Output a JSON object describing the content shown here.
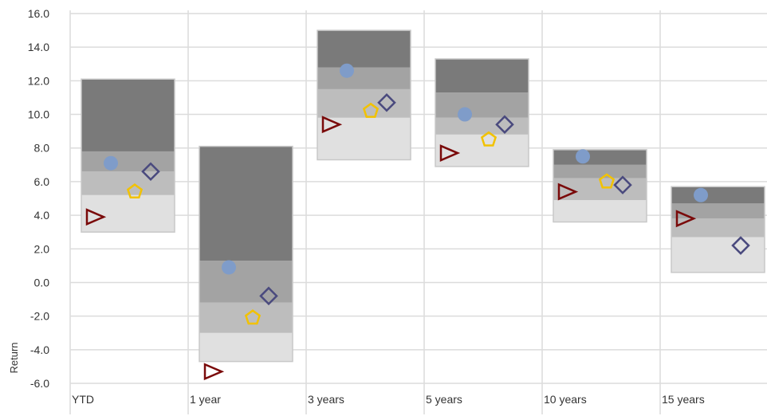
{
  "chart_data": {
    "type": "floating-bar-with-markers",
    "title": "",
    "xlabel": "",
    "ylabel": "Return",
    "ylim": [
      -6,
      16
    ],
    "yticks": [
      -6,
      -4,
      -2,
      0,
      2,
      4,
      6,
      8,
      10,
      12,
      14,
      16
    ],
    "ytick_labels": [
      "-6.0",
      "-4.0",
      "-2.0",
      "0.0",
      "2.0",
      "4.0",
      "6.0",
      "8.0",
      "10.0",
      "12.0",
      "14.0",
      "16.0"
    ],
    "grid": true,
    "categories": [
      "YTD",
      "1 year",
      "3 years",
      "5 years",
      "10 years",
      "15 years"
    ],
    "bands": [
      {
        "color": "#e0e0e0",
        "values": [
          [
            3.0,
            5.2
          ],
          [
            -4.7,
            -3.0
          ],
          [
            7.3,
            9.8
          ],
          [
            6.9,
            8.8
          ],
          [
            3.6,
            4.9
          ],
          [
            0.6,
            2.7
          ]
        ]
      },
      {
        "color": "#bdbdbd",
        "values": [
          [
            5.2,
            6.6
          ],
          [
            -3.0,
            -1.2
          ],
          [
            9.8,
            11.5
          ],
          [
            8.8,
            9.8
          ],
          [
            4.9,
            6.2
          ],
          [
            2.7,
            3.8
          ]
        ]
      },
      {
        "color": "#a3a3a3",
        "values": [
          [
            6.6,
            7.8
          ],
          [
            -1.2,
            1.3
          ],
          [
            11.5,
            12.8
          ],
          [
            9.8,
            11.3
          ],
          [
            6.2,
            7.0
          ],
          [
            3.8,
            4.7
          ]
        ]
      },
      {
        "color": "#7a7a7a",
        "values": [
          [
            7.8,
            12.1
          ],
          [
            1.3,
            8.1
          ],
          [
            12.8,
            15.0
          ],
          [
            11.3,
            13.3
          ],
          [
            7.0,
            7.9
          ],
          [
            4.7,
            5.7
          ]
        ]
      }
    ],
    "series": [
      {
        "marker": "circle",
        "color": "#7f9cc9",
        "values": [
          7.1,
          0.9,
          12.6,
          10.0,
          7.5,
          5.2
        ]
      },
      {
        "marker": "diamond",
        "color": "#4a4a7e",
        "values": [
          6.6,
          -0.8,
          10.7,
          9.4,
          5.8,
          2.2
        ]
      },
      {
        "marker": "pentagon",
        "color": "#f2c200",
        "values": [
          5.4,
          -2.1,
          10.2,
          8.5,
          6.0,
          null
        ]
      },
      {
        "marker": "triangle-right",
        "color": "#7a0a0a",
        "values": [
          3.9,
          -5.3,
          9.4,
          7.7,
          5.4,
          3.8
        ]
      }
    ]
  }
}
